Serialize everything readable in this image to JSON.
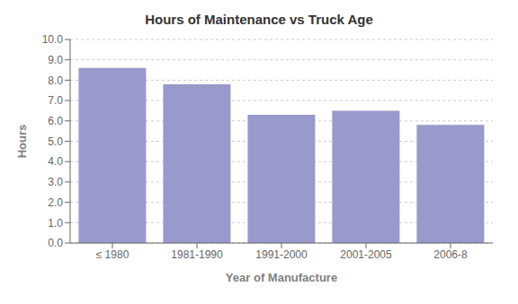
{
  "chart_data": {
    "type": "bar",
    "title": "Hours of Maintenance vs Truck Age",
    "xlabel": "Year of Manufacture",
    "ylabel": "Hours",
    "categories": [
      "≤ 1980",
      "1981-1990",
      "1991-2000",
      "2001-2005",
      "2006-8"
    ],
    "values": [
      8.6,
      7.8,
      6.3,
      6.5,
      5.8
    ],
    "color": "#9999CC",
    "ylim": [
      0.0,
      10.0
    ],
    "yticks": [
      {
        "value": 0,
        "label": "0.0"
      },
      {
        "value": 1,
        "label": "1.0"
      },
      {
        "value": 2,
        "label": "2.0"
      },
      {
        "value": 3,
        "label": "3.0"
      },
      {
        "value": 4,
        "label": "4.0"
      },
      {
        "value": 5,
        "label": "5.0"
      },
      {
        "value": 6,
        "label": "6.0"
      },
      {
        "value": 7,
        "label": "7.0"
      },
      {
        "value": 8,
        "label": "8.0"
      },
      {
        "value": 9,
        "label": "9.0"
      },
      {
        "value": 10,
        "label": "10.0"
      }
    ],
    "grid": true
  }
}
